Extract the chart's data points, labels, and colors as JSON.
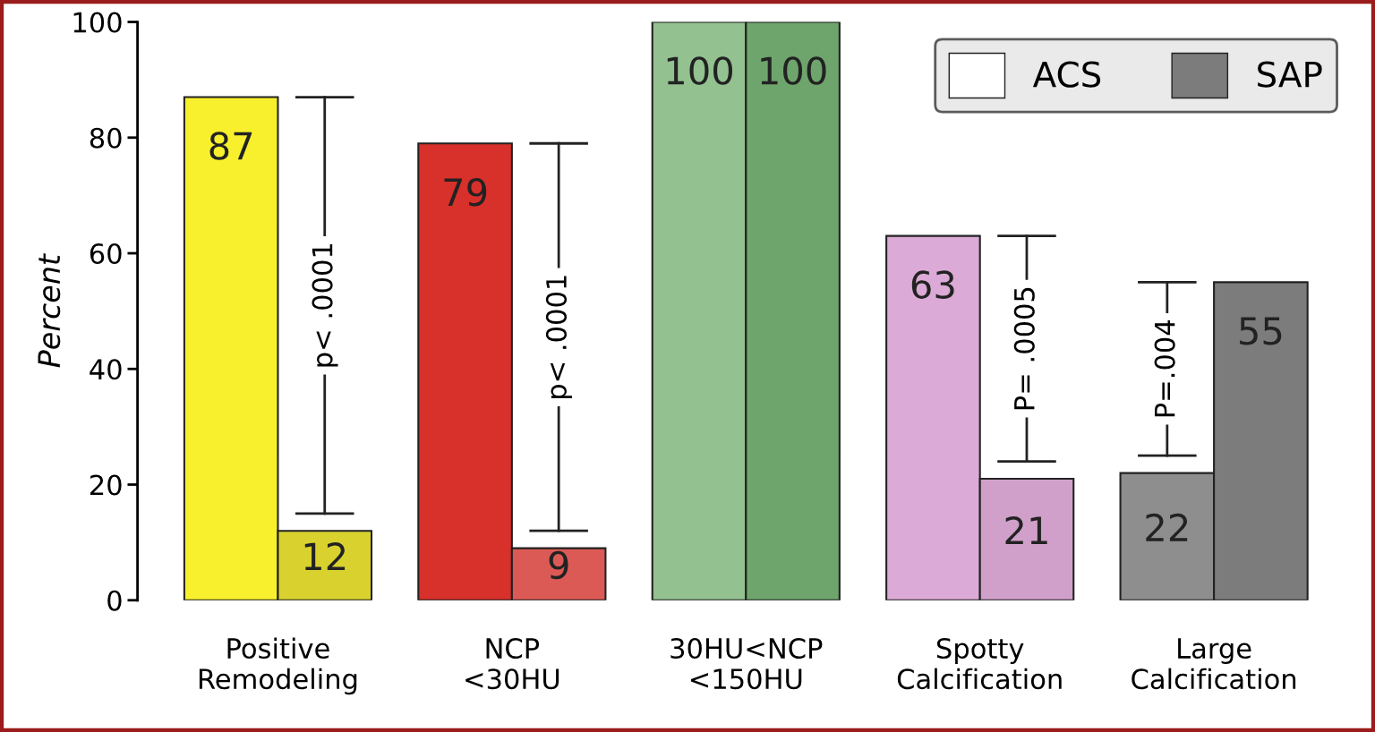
{
  "chart_data": {
    "type": "bar",
    "ylabel": "Percent",
    "categories": [
      "Positive\nRemodeling",
      "NCP\n<30HU",
      "30HU<NCP\n<150HU",
      "Spotty\nCalcification",
      "Large\nCalcification"
    ],
    "series": [
      {
        "name": "ACS",
        "color": "#ffffff",
        "colors": [
          "#f8f02c",
          "#d8302a",
          "#93c190",
          "#dcaad6",
          "#8e8e8e"
        ],
        "values": [
          87,
          79,
          100,
          63,
          22
        ]
      },
      {
        "name": "SAP",
        "color": "#7c7c7c",
        "colors": [
          "#d9d22e",
          "#dc5a55",
          "#6ea56c",
          "#d0a0ca",
          "#7c7c7c"
        ],
        "values": [
          12,
          9,
          100,
          21,
          55
        ]
      }
    ],
    "ylim": [
      0,
      100
    ],
    "yticks": [
      0,
      20,
      40,
      60,
      80,
      100
    ],
    "data_labels": true,
    "legend": "top right",
    "grid": false,
    "annotations": [
      "p< .0001",
      "p< .0001",
      "P= .0005",
      "P=.004"
    ]
  }
}
